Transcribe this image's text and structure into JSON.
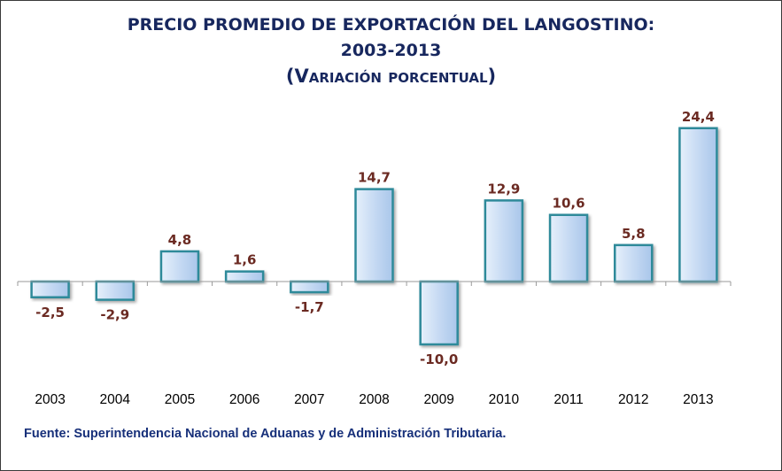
{
  "chart_data": {
    "type": "bar",
    "title_line1": "PRECIO PROMEDIO DE EXPORTACIÓN DEL LANGOSTINO:",
    "title_line2": "2003-2013",
    "title_line3": "(Variación porcentual)",
    "categories": [
      "2003",
      "2004",
      "2005",
      "2006",
      "2007",
      "2008",
      "2009",
      "2010",
      "2011",
      "2012",
      "2013"
    ],
    "values": [
      -2.5,
      -2.9,
      4.8,
      1.6,
      -1.7,
      14.7,
      -10.0,
      12.9,
      10.6,
      5.8,
      24.4
    ],
    "value_labels": [
      "-2,5",
      "-2,9",
      "4,8",
      "1,6",
      "-1,7",
      "14,7",
      "-10,0",
      "12,9",
      "10,6",
      "5,8",
      "24,4"
    ],
    "source": "Fuente: Superintendencia Nacional de Aduanas y de Administración Tributaria.",
    "colors": {
      "bar_fill": "#c9dcf4",
      "bar_stroke": "#2f8a9a",
      "label": "#6b2a22",
      "title": "#17275e"
    },
    "grid": false,
    "legend": "none"
  }
}
